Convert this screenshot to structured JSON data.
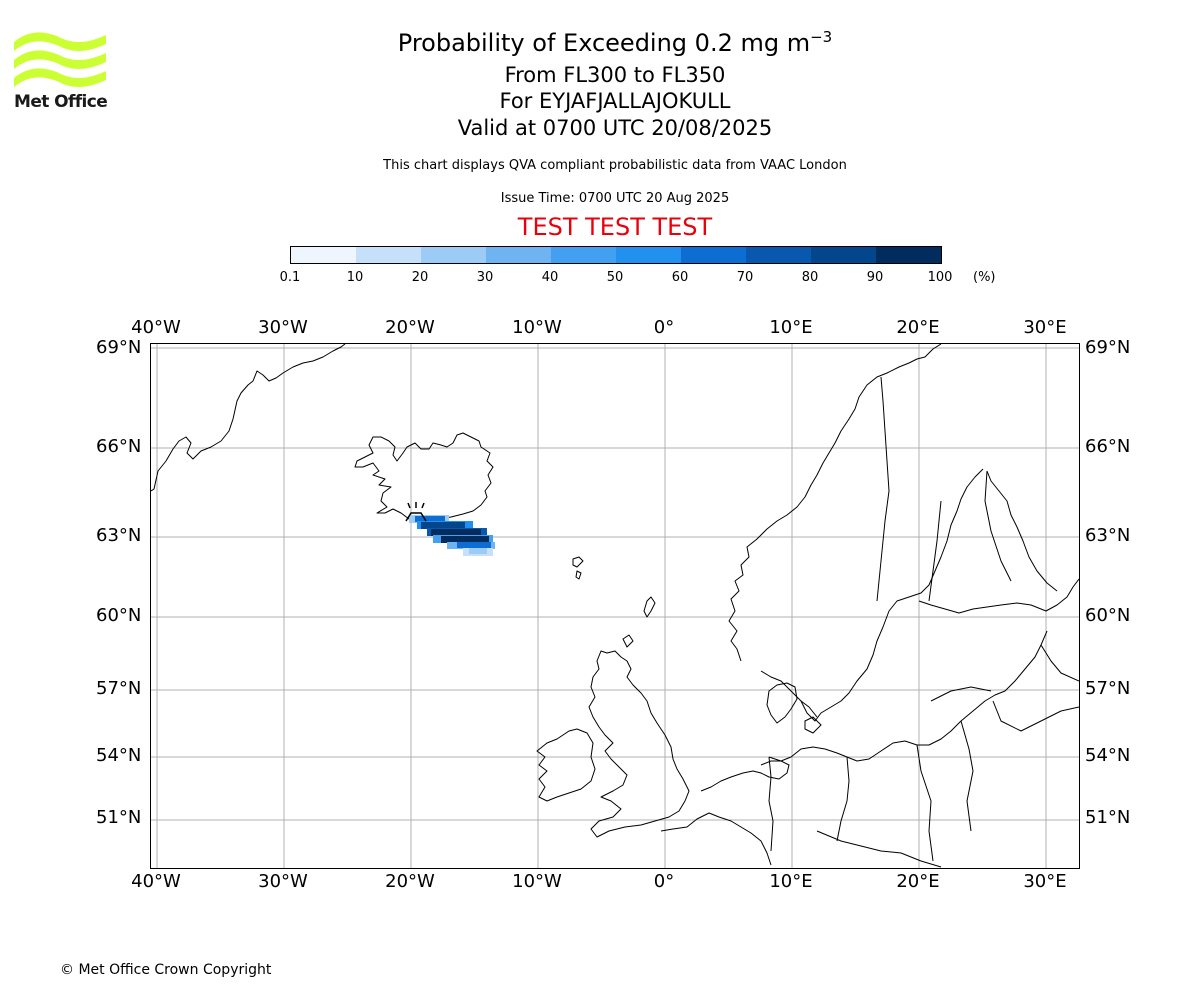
{
  "header": {
    "title_main": "Probability of Exceeding 0.2 mg m",
    "title_sup": "−3",
    "flight_levels": "From FL300 to FL350",
    "volcano": "For EYJAFJALLAJOKULL",
    "valid": "Valid at 0700 UTC 20/08/2025",
    "subtitle": "This chart displays QVA compliant probabilistic data from VAAC London",
    "issue_time": "Issue Time: 0700 UTC 20 Aug 2025",
    "test_banner": "TEST TEST TEST"
  },
  "logo": {
    "text": "Met Office",
    "color": "#ccff33"
  },
  "colorbar": {
    "ticks": [
      "0.1",
      "10",
      "20",
      "30",
      "40",
      "50",
      "60",
      "70",
      "80",
      "90",
      "100"
    ],
    "unit": "(%)",
    "colors": [
      "#eef5fd",
      "#c6e0f9",
      "#9ccbf6",
      "#6fb4f2",
      "#43a0f0",
      "#2290ee",
      "#0d6dd3",
      "#0858b0",
      "#04468d",
      "#022c5e"
    ]
  },
  "map": {
    "lon_labels": [
      "40°W",
      "30°W",
      "20°W",
      "10°W",
      "0°",
      "10°E",
      "20°E",
      "30°E"
    ],
    "lat_labels": [
      "69°N",
      "66°N",
      "63°N",
      "60°N",
      "57°N",
      "54°N",
      "51°N"
    ],
    "gridline_color": "#b0b0b0",
    "coastline_color": "#000000"
  },
  "footer": {
    "copyright": "© Met Office Crown Copyright"
  }
}
